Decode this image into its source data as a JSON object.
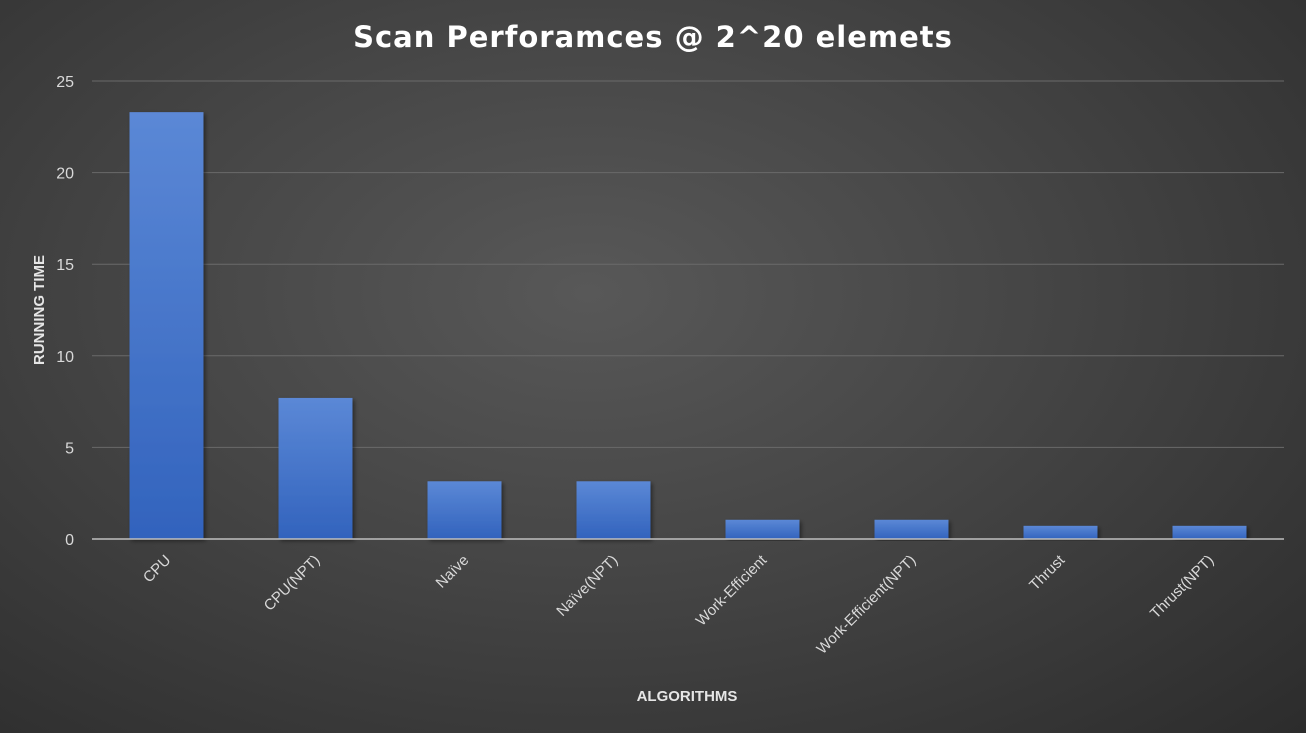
{
  "chart_data": {
    "type": "bar",
    "title": "Scan Perforamces @ 2^20 elemets",
    "xlabel": "ALGORITHMS",
    "ylabel": "RUNNING TIME",
    "categories": [
      "CPU",
      "CPU(NPT)",
      "Naïve",
      "Naïve(NPT)",
      "Work-Efficient",
      "Work-Efficient(NPT)",
      "Thrust",
      "Thrust(NPT)"
    ],
    "values": [
      23.3,
      7.7,
      3.15,
      3.15,
      1.05,
      1.05,
      0.72,
      0.72
    ],
    "ylim": [
      0,
      25
    ],
    "yticks": [
      "0",
      "5",
      "10",
      "15",
      "20",
      "25"
    ],
    "grid": true,
    "legend": "none",
    "bar_color": "#4472c4"
  }
}
